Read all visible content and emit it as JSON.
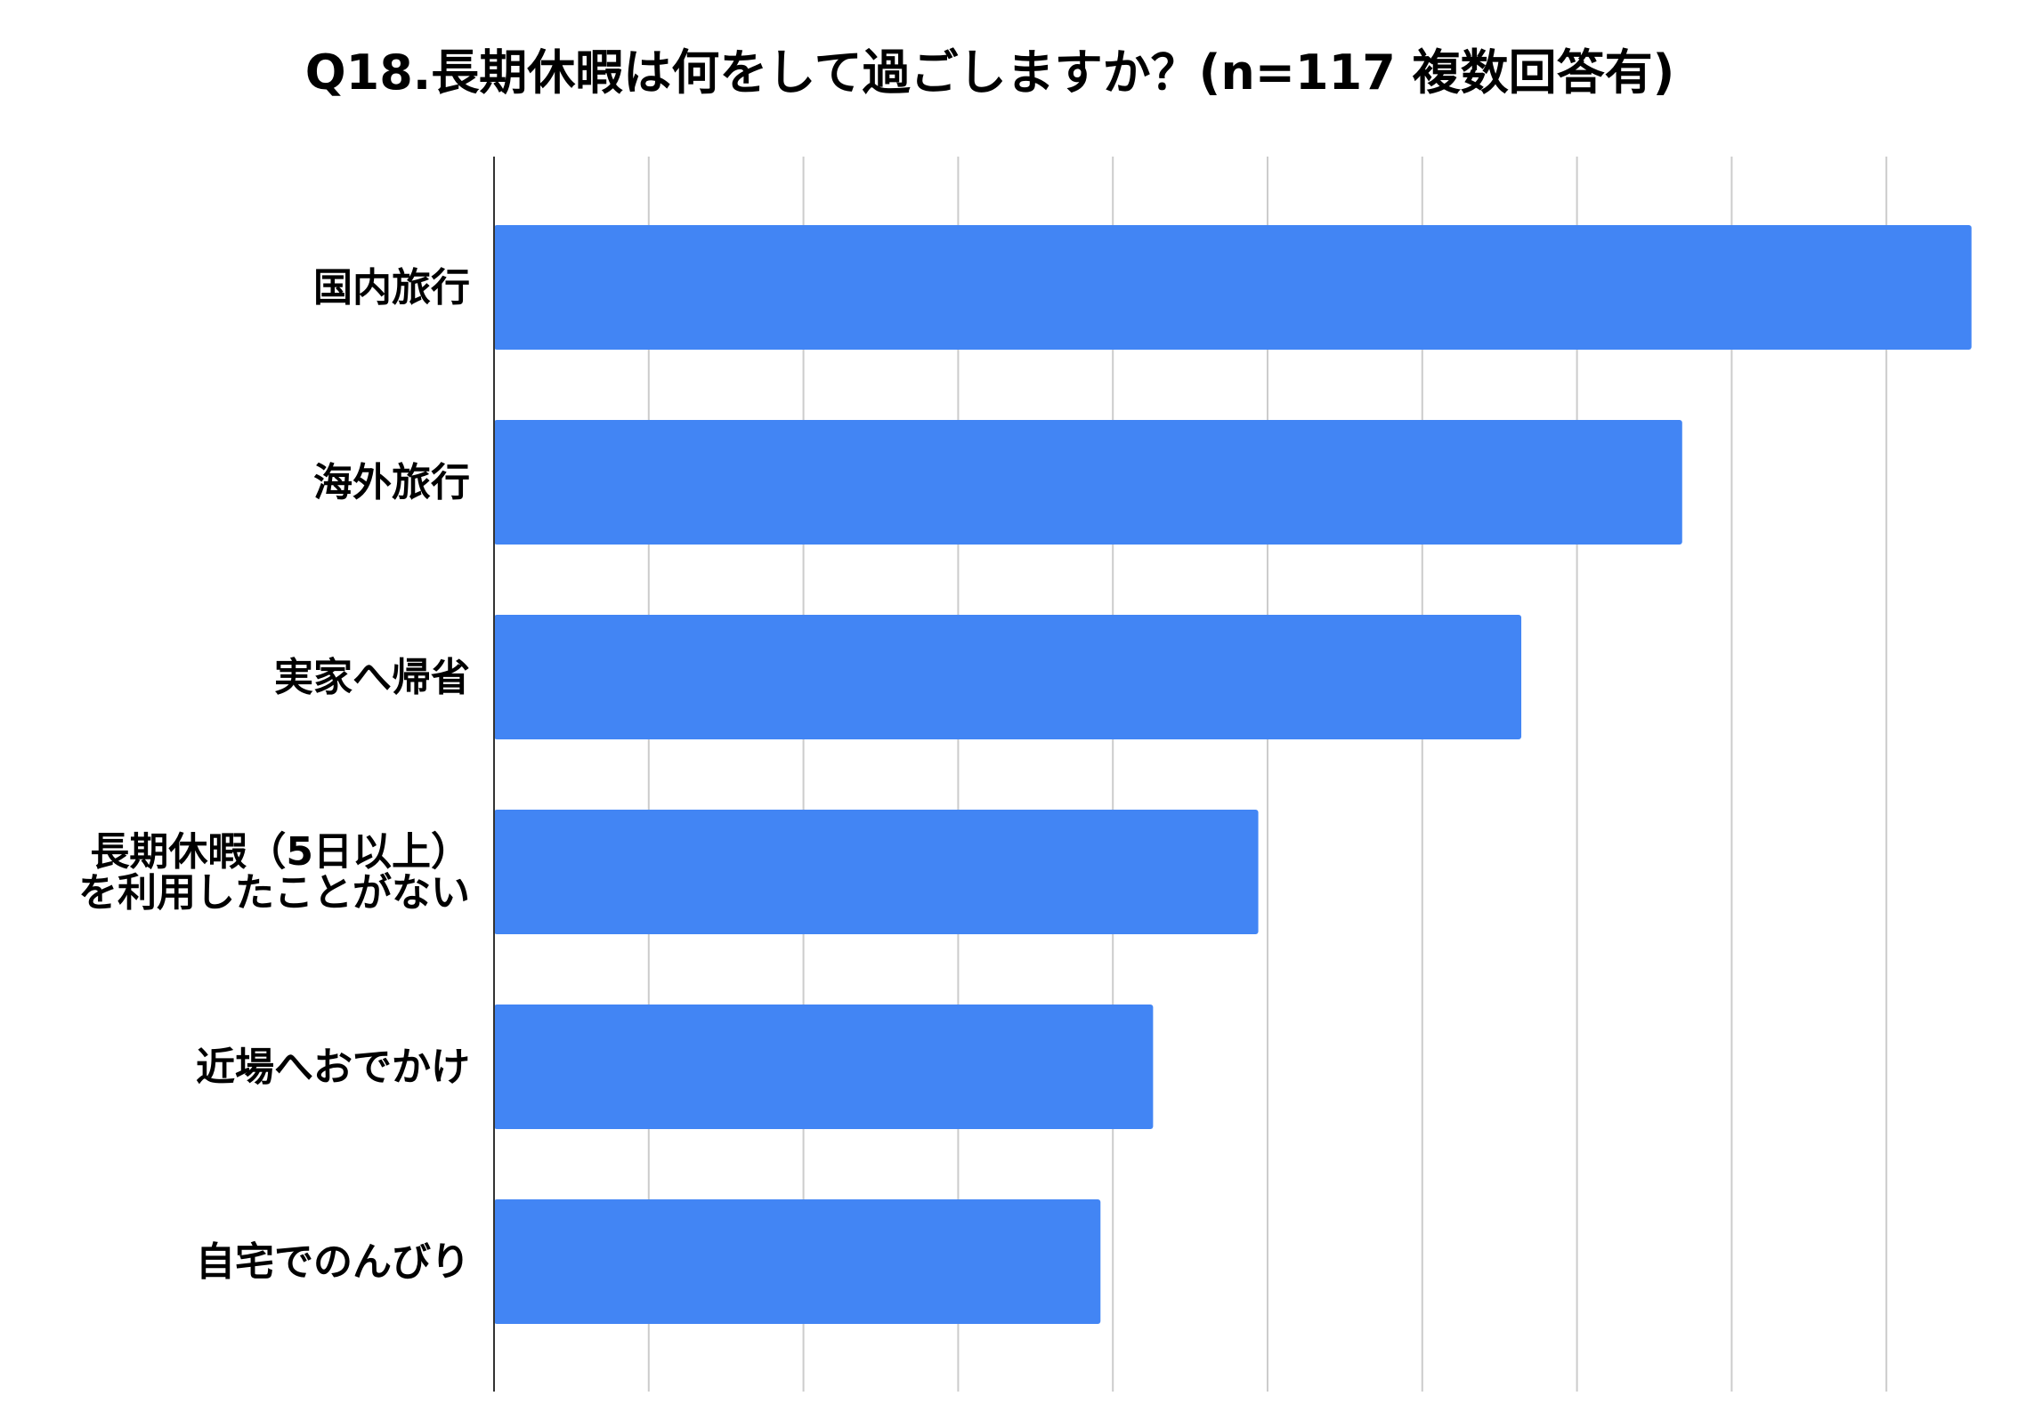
{
  "chart_data": {
    "type": "bar",
    "orientation": "horizontal",
    "title": "Q18.長期休暇は何をして過ごしますか？(n=117 複数回答有)",
    "categories": [
      [
        "国内旅行"
      ],
      [
        "海外旅行"
      ],
      [
        "実家へ帰省"
      ],
      [
        "長期休暇（5日以上）",
        "を利用したことがない"
      ],
      [
        "近場へおでかけ"
      ],
      [
        "自宅でのんびり"
      ]
    ],
    "values": [
      95.5,
      76.8,
      66.4,
      49.4,
      42.6,
      39.2
    ],
    "xlim": [
      0,
      100
    ],
    "grid_step": 10,
    "grid": true,
    "bar_color": "#4285F4",
    "grid_color": "#cccccc",
    "axis_color": "#333333"
  }
}
